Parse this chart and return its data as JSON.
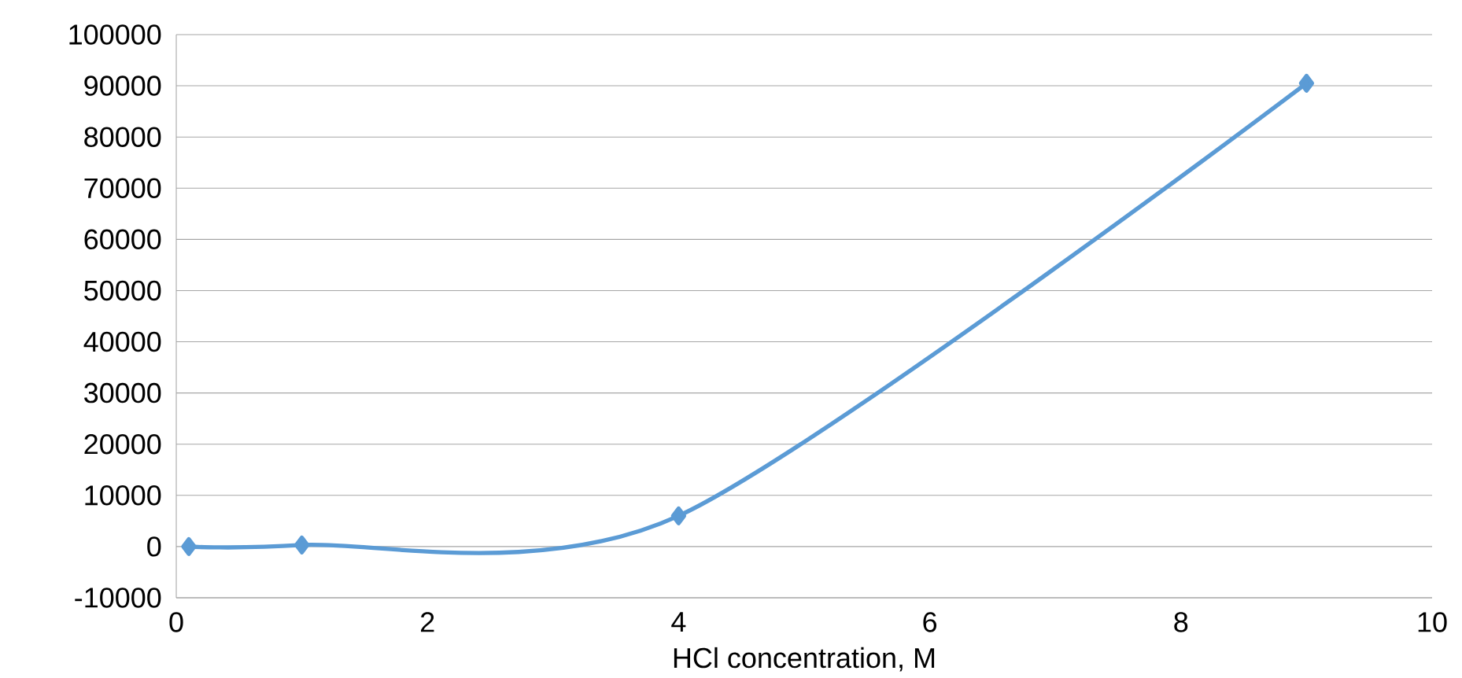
{
  "chart_data": {
    "type": "line",
    "xlabel": "HCl concentration, M",
    "x": [
      0.1,
      1,
      4,
      9
    ],
    "series": [
      {
        "color": "#5b9bd5",
        "values": [
          0,
          300,
          6000,
          90500
        ]
      }
    ],
    "xlim": [
      0,
      10
    ],
    "xticks": [
      0,
      2,
      4,
      6,
      8,
      10
    ],
    "ylim": [
      -10000,
      100000
    ],
    "yticks": [
      -10000,
      0,
      10000,
      20000,
      30000,
      40000,
      50000,
      60000,
      70000,
      80000,
      90000,
      100000
    ],
    "grid": "y",
    "marker": "diamond",
    "line_style": "solid"
  }
}
